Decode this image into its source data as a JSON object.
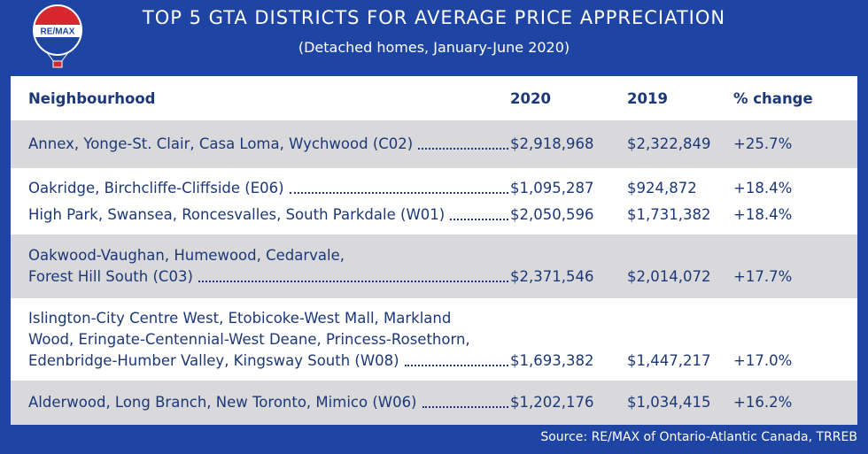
{
  "logo": {
    "text": "RE/MAX"
  },
  "header": {
    "title": "TOP 5 GTA DISTRICTS FOR AVERAGE PRICE APPRECIATION",
    "subtitle": "(Detached homes, January-June 2020)"
  },
  "table": {
    "columns": [
      "Neighbourhood",
      "2020",
      "2019",
      "% change"
    ],
    "groups": [
      {
        "rows": [
          {
            "name_lines": [
              "Annex, Yonge-St. Clair, Casa Loma, Wychwood (C02)"
            ],
            "price_2020": "$2,918,968",
            "price_2019": "$2,322,849",
            "change": "+25.7%"
          }
        ]
      },
      {
        "rows": [
          {
            "name_lines": [
              "Oakridge, Birchcliffe-Cliffside (E06)"
            ],
            "price_2020": "$1,095,287",
            "price_2019": "$924,872",
            "change": "+18.4%"
          },
          {
            "name_lines": [
              "High Park, Swansea, Roncesvalles, South Parkdale (W01)"
            ],
            "price_2020": "$2,050,596",
            "price_2019": "$1,731,382",
            "change": "+18.4%"
          }
        ]
      },
      {
        "rows": [
          {
            "name_lines": [
              "Oakwood-Vaughan, Humewood, Cedarvale,",
              "Forest Hill South (C03)"
            ],
            "price_2020": "$2,371,546",
            "price_2019": "$2,014,072",
            "change": "+17.7%"
          }
        ]
      },
      {
        "rows": [
          {
            "name_lines": [
              "Islington-City Centre West, Etobicoke-West Mall, Markland",
              "Wood, Eringate-Centennial-West Deane, Princess-Rosethorn,",
              "Edenbridge-Humber Valley, Kingsway South (W08)"
            ],
            "price_2020": "$1,693,382",
            "price_2019": "$1,447,217",
            "change": "+17.0%"
          }
        ]
      },
      {
        "rows": [
          {
            "name_lines": [
              "Alderwood, Long Branch, New Toronto, Mimico (W06)"
            ],
            "price_2020": "$1,202,176",
            "price_2019": "$1,034,415",
            "change": "+16.2%"
          }
        ]
      }
    ]
  },
  "source": "Source:  RE/MAX of Ontario-Atlantic Canada, TRREB"
}
